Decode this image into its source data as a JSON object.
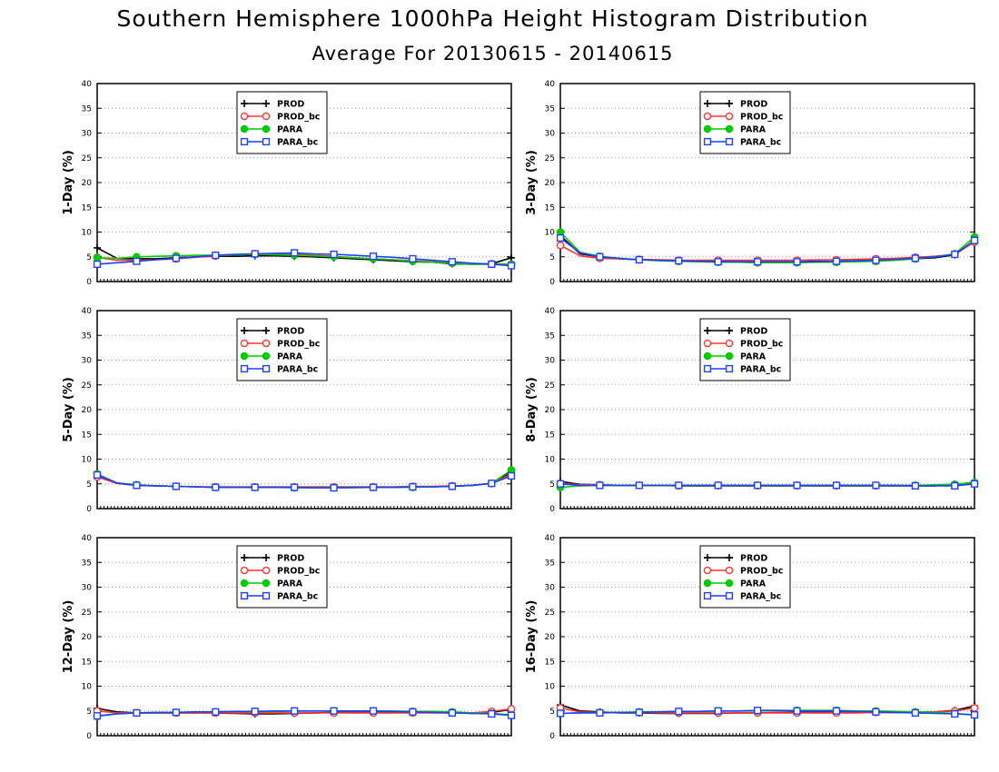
{
  "title": "Southern Hemisphere 1000hPa Height Histogram Distribution",
  "subtitle": "Average For 20130615 - 20140615",
  "colors": {
    "PROD": "#000000",
    "PROD_bc": "#ff3333",
    "PARA": "#00cc00",
    "PARA_bc": "#1f3fff"
  },
  "chart_data": [
    {
      "type": "line",
      "ylabel": "1-Day (%)",
      "ylim": [
        0,
        40
      ],
      "yticks": [
        0,
        5,
        10,
        15,
        20,
        25,
        30,
        35,
        40
      ],
      "x": [
        1,
        2,
        3,
        4,
        5,
        6,
        7,
        8,
        9,
        10,
        11,
        12,
        13,
        14,
        15,
        16,
        17,
        18,
        19,
        20,
        21,
        22
      ],
      "legend": "top-left",
      "grid": true,
      "series": [
        {
          "name": "PROD",
          "marker": "plus",
          "values": [
            6.8,
            4.7,
            4.6,
            4.6,
            4.8,
            5.0,
            5.1,
            5.1,
            5.2,
            5.2,
            5.1,
            5.0,
            4.8,
            4.6,
            4.4,
            4.2,
            4.0,
            3.9,
            3.6,
            3.5,
            3.6,
            4.8
          ]
        },
        {
          "name": "PROD_bc",
          "marker": "open-circle",
          "values": [
            4.9,
            4.3,
            4.3,
            4.4,
            4.6,
            4.9,
            5.2,
            5.4,
            5.6,
            5.6,
            5.5,
            5.3,
            5.1,
            4.8,
            4.6,
            4.4,
            4.2,
            4.0,
            3.8,
            3.6,
            3.6,
            3.5
          ]
        },
        {
          "name": "PARA",
          "marker": "filled-circle",
          "values": [
            4.8,
            4.7,
            5.0,
            5.1,
            5.2,
            5.3,
            5.3,
            5.4,
            5.5,
            5.4,
            5.3,
            5.2,
            5.0,
            4.8,
            4.6,
            4.4,
            4.1,
            3.9,
            3.7,
            3.5,
            3.5,
            3.5
          ]
        },
        {
          "name": "PARA_bc",
          "marker": "open-square",
          "values": [
            3.5,
            3.8,
            4.1,
            4.4,
            4.7,
            5.0,
            5.3,
            5.5,
            5.6,
            5.7,
            5.8,
            5.6,
            5.5,
            5.3,
            5.1,
            4.9,
            4.6,
            4.3,
            4.0,
            3.7,
            3.5,
            3.2
          ]
        }
      ]
    },
    {
      "type": "line",
      "ylabel": "3-Day (%)",
      "ylim": [
        0,
        40
      ],
      "yticks": [
        0,
        5,
        10,
        15,
        20,
        25,
        30,
        35,
        40
      ],
      "x": [
        1,
        2,
        3,
        4,
        5,
        6,
        7,
        8,
        9,
        10,
        11,
        12,
        13,
        14,
        15,
        16,
        17,
        18,
        19,
        20,
        21,
        22
      ],
      "legend": "top-center",
      "grid": true,
      "series": [
        {
          "name": "PROD",
          "marker": "plus",
          "values": [
            9.3,
            5.6,
            5.0,
            4.6,
            4.4,
            4.3,
            4.2,
            4.1,
            4.1,
            4.0,
            4.0,
            4.0,
            4.0,
            4.1,
            4.1,
            4.2,
            4.3,
            4.4,
            4.6,
            4.8,
            5.4,
            8.3
          ]
        },
        {
          "name": "PROD_bc",
          "marker": "open-circle",
          "values": [
            7.3,
            5.2,
            4.7,
            4.6,
            4.5,
            4.4,
            4.3,
            4.3,
            4.3,
            4.3,
            4.3,
            4.3,
            4.3,
            4.4,
            4.4,
            4.5,
            4.6,
            4.7,
            4.9,
            5.1,
            5.5,
            8.0
          ]
        },
        {
          "name": "PARA",
          "marker": "filled-circle",
          "values": [
            10.0,
            5.9,
            5.1,
            4.7,
            4.4,
            4.2,
            4.1,
            4.0,
            3.9,
            3.9,
            3.8,
            3.8,
            3.8,
            3.9,
            3.9,
            4.0,
            4.1,
            4.3,
            4.6,
            5.0,
            5.6,
            9.0
          ]
        },
        {
          "name": "PARA_bc",
          "marker": "open-square",
          "values": [
            8.8,
            5.8,
            5.0,
            4.7,
            4.4,
            4.3,
            4.2,
            4.1,
            4.0,
            4.0,
            4.0,
            4.0,
            4.0,
            4.0,
            4.1,
            4.2,
            4.3,
            4.5,
            4.7,
            5.0,
            5.5,
            8.3
          ]
        }
      ]
    },
    {
      "type": "line",
      "ylabel": "5-Day (%)",
      "ylim": [
        0,
        40
      ],
      "yticks": [
        0,
        5,
        10,
        15,
        20,
        25,
        30,
        35,
        40
      ],
      "x": [
        1,
        2,
        3,
        4,
        5,
        6,
        7,
        8,
        9,
        10,
        11,
        12,
        13,
        14,
        15,
        16,
        17,
        18,
        19,
        20,
        21,
        22
      ],
      "legend": "top-left",
      "grid": true,
      "series": [
        {
          "name": "PROD",
          "marker": "plus",
          "values": [
            6.5,
            5.1,
            4.7,
            4.6,
            4.5,
            4.4,
            4.3,
            4.3,
            4.3,
            4.3,
            4.3,
            4.3,
            4.3,
            4.3,
            4.3,
            4.3,
            4.4,
            4.4,
            4.5,
            4.7,
            5.1,
            7.4
          ]
        },
        {
          "name": "PROD_bc",
          "marker": "open-circle",
          "values": [
            6.4,
            5.1,
            4.8,
            4.6,
            4.5,
            4.4,
            4.4,
            4.4,
            4.4,
            4.4,
            4.4,
            4.4,
            4.4,
            4.4,
            4.4,
            4.4,
            4.5,
            4.5,
            4.6,
            4.7,
            5.1,
            7.0
          ]
        },
        {
          "name": "PARA",
          "marker": "filled-circle",
          "values": [
            7.0,
            5.2,
            4.8,
            4.6,
            4.5,
            4.4,
            4.3,
            4.3,
            4.3,
            4.3,
            4.2,
            4.2,
            4.2,
            4.2,
            4.3,
            4.3,
            4.3,
            4.4,
            4.5,
            4.7,
            5.1,
            7.8
          ]
        },
        {
          "name": "PARA_bc",
          "marker": "open-square",
          "values": [
            6.8,
            5.2,
            4.7,
            4.6,
            4.5,
            4.4,
            4.3,
            4.3,
            4.3,
            4.3,
            4.3,
            4.2,
            4.2,
            4.3,
            4.3,
            4.3,
            4.4,
            4.4,
            4.5,
            4.7,
            5.1,
            6.6
          ]
        }
      ]
    },
    {
      "type": "line",
      "ylabel": "8-Day (%)",
      "ylim": [
        0,
        40
      ],
      "yticks": [
        0,
        5,
        10,
        15,
        20,
        25,
        30,
        35,
        40
      ],
      "x": [
        1,
        2,
        3,
        4,
        5,
        6,
        7,
        8,
        9,
        10,
        11,
        12,
        13,
        14,
        15,
        16,
        17,
        18,
        19,
        20,
        21,
        22
      ],
      "legend": "top-center",
      "grid": true,
      "series": [
        {
          "name": "PROD",
          "marker": "plus",
          "values": [
            5.5,
            4.9,
            4.8,
            4.7,
            4.7,
            4.7,
            4.6,
            4.6,
            4.6,
            4.6,
            4.6,
            4.6,
            4.6,
            4.6,
            4.6,
            4.6,
            4.6,
            4.6,
            4.6,
            4.6,
            4.9,
            5.3
          ]
        },
        {
          "name": "PROD_bc",
          "marker": "open-circle",
          "values": [
            5.1,
            4.8,
            4.8,
            4.7,
            4.7,
            4.7,
            4.7,
            4.7,
            4.7,
            4.7,
            4.7,
            4.7,
            4.7,
            4.7,
            4.7,
            4.7,
            4.7,
            4.7,
            4.7,
            4.7,
            4.9,
            5.1
          ]
        },
        {
          "name": "PARA",
          "marker": "filled-circle",
          "values": [
            4.3,
            4.6,
            4.7,
            4.7,
            4.7,
            4.7,
            4.7,
            4.7,
            4.7,
            4.7,
            4.7,
            4.7,
            4.7,
            4.7,
            4.7,
            4.7,
            4.7,
            4.7,
            4.7,
            4.8,
            4.9,
            5.3
          ]
        },
        {
          "name": "PARA_bc",
          "marker": "open-square",
          "values": [
            5.0,
            4.7,
            4.7,
            4.7,
            4.7,
            4.7,
            4.7,
            4.7,
            4.7,
            4.7,
            4.7,
            4.7,
            4.7,
            4.7,
            4.7,
            4.7,
            4.7,
            4.7,
            4.6,
            4.6,
            4.6,
            5.0
          ]
        }
      ]
    },
    {
      "type": "line",
      "ylabel": "12-Day (%)",
      "ylim": [
        0,
        40
      ],
      "yticks": [
        0,
        5,
        10,
        15,
        20,
        25,
        30,
        35,
        40
      ],
      "x": [
        1,
        2,
        3,
        4,
        5,
        6,
        7,
        8,
        9,
        10,
        11,
        12,
        13,
        14,
        15,
        16,
        17,
        18,
        19,
        20,
        21,
        22
      ],
      "legend": "top-left",
      "grid": true,
      "series": [
        {
          "name": "PROD",
          "marker": "plus",
          "values": [
            5.5,
            4.8,
            4.6,
            4.6,
            4.6,
            4.6,
            4.6,
            4.5,
            4.4,
            4.4,
            4.5,
            4.6,
            4.7,
            4.7,
            4.7,
            4.7,
            4.7,
            4.7,
            4.7,
            4.5,
            4.7,
            5.3
          ]
        },
        {
          "name": "PROD_bc",
          "marker": "open-circle",
          "values": [
            5.0,
            4.6,
            4.6,
            4.6,
            4.6,
            4.6,
            4.6,
            4.6,
            4.6,
            4.6,
            4.6,
            4.6,
            4.6,
            4.6,
            4.6,
            4.6,
            4.6,
            4.6,
            4.6,
            4.6,
            4.9,
            5.4
          ]
        },
        {
          "name": "PARA",
          "marker": "filled-circle",
          "values": [
            3.9,
            4.4,
            4.6,
            4.7,
            4.7,
            4.8,
            4.8,
            4.9,
            4.9,
            4.9,
            5.0,
            5.0,
            5.0,
            5.0,
            5.0,
            5.0,
            4.9,
            4.9,
            4.8,
            4.6,
            4.5,
            4.2
          ]
        },
        {
          "name": "PARA_bc",
          "marker": "open-square",
          "values": [
            4.0,
            4.4,
            4.6,
            4.7,
            4.7,
            4.8,
            4.8,
            4.9,
            4.9,
            5.0,
            5.0,
            5.0,
            5.0,
            5.0,
            5.0,
            4.9,
            4.8,
            4.7,
            4.6,
            4.5,
            4.4,
            4.1
          ]
        }
      ]
    },
    {
      "type": "line",
      "ylabel": "16-Day (%)",
      "ylim": [
        0,
        40
      ],
      "yticks": [
        0,
        5,
        10,
        15,
        20,
        25,
        30,
        35,
        40
      ],
      "x": [
        1,
        2,
        3,
        4,
        5,
        6,
        7,
        8,
        9,
        10,
        11,
        12,
        13,
        14,
        15,
        16,
        17,
        18,
        19,
        20,
        21,
        22
      ],
      "legend": "top-center",
      "grid": true,
      "series": [
        {
          "name": "PROD",
          "marker": "plus",
          "values": [
            6.2,
            5.0,
            4.8,
            4.6,
            4.6,
            4.5,
            4.5,
            4.5,
            4.5,
            4.6,
            4.6,
            4.7,
            4.7,
            4.7,
            4.7,
            4.7,
            4.7,
            4.7,
            4.7,
            4.8,
            5.1,
            6.0
          ]
        },
        {
          "name": "PROD_bc",
          "marker": "open-circle",
          "values": [
            5.6,
            4.8,
            4.7,
            4.7,
            4.7,
            4.6,
            4.6,
            4.6,
            4.6,
            4.6,
            4.6,
            4.6,
            4.6,
            4.6,
            4.6,
            4.6,
            4.7,
            4.7,
            4.7,
            4.8,
            5.0,
            5.6
          ]
        },
        {
          "name": "PARA",
          "marker": "filled-circle",
          "values": [
            4.5,
            4.6,
            4.7,
            4.7,
            4.8,
            4.8,
            4.9,
            4.9,
            5.0,
            5.0,
            5.0,
            5.1,
            5.1,
            5.1,
            5.1,
            5.0,
            5.0,
            4.9,
            4.8,
            4.7,
            4.5,
            4.2
          ]
        },
        {
          "name": "PARA_bc",
          "marker": "open-square",
          "values": [
            4.5,
            4.6,
            4.6,
            4.7,
            4.7,
            4.8,
            4.9,
            4.9,
            5.0,
            5.0,
            5.1,
            5.1,
            5.0,
            5.0,
            5.0,
            4.9,
            4.8,
            4.7,
            4.6,
            4.5,
            4.4,
            4.2
          ]
        }
      ]
    }
  ]
}
